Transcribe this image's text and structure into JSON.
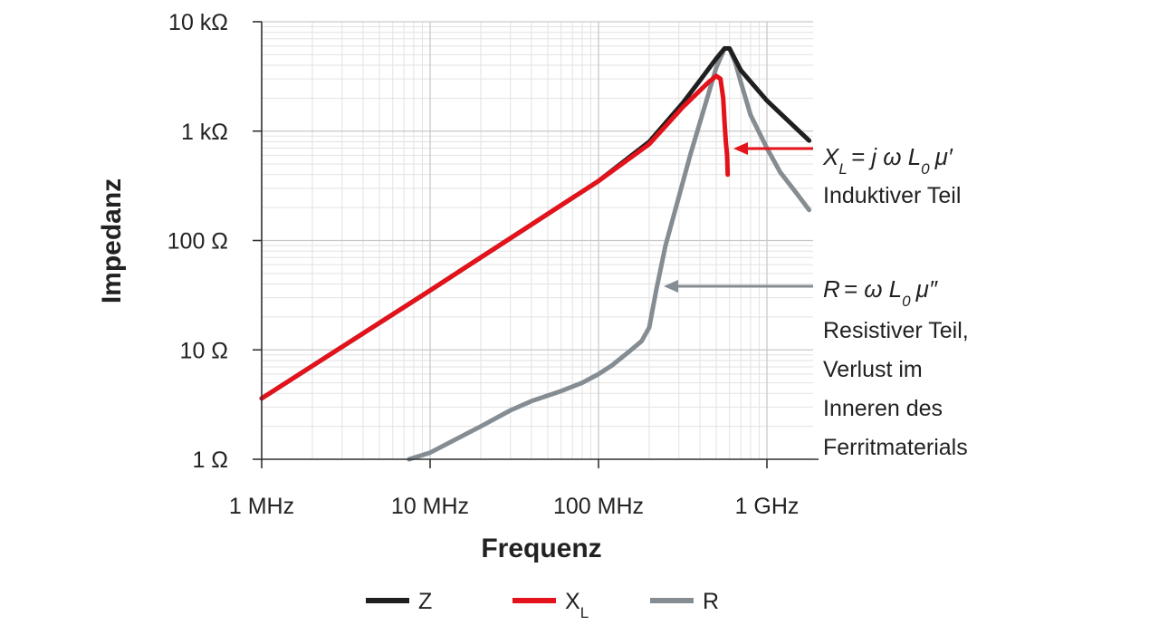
{
  "chart_data": {
    "type": "line",
    "xlabel": "Frequenz",
    "ylabel": "Impedanz",
    "x_scale": "log",
    "y_scale": "log",
    "xlim": [
      1,
      1780
    ],
    "ylim": [
      1,
      10000
    ],
    "x_unit": "MHz",
    "x_ticks": [
      {
        "value": 1,
        "label": "1 MHz"
      },
      {
        "value": 10,
        "label": "10 MHz"
      },
      {
        "value": 100,
        "label": "100 MHz"
      },
      {
        "value": 1000,
        "label": "1 GHz"
      }
    ],
    "y_ticks": [
      {
        "value": 1,
        "label": "1 Ω"
      },
      {
        "value": 10,
        "label": "10 Ω"
      },
      {
        "value": 100,
        "label": "100 Ω"
      },
      {
        "value": 1000,
        "label": "1 kΩ"
      },
      {
        "value": 10000,
        "label": "10 kΩ"
      }
    ],
    "grid": true,
    "legend_position": "bottom",
    "series": [
      {
        "name": "Z",
        "color": "#1f1f1f",
        "points": [
          [
            1,
            3.6
          ],
          [
            10,
            35
          ],
          [
            100,
            350
          ],
          [
            200,
            800
          ],
          [
            316,
            1800
          ],
          [
            400,
            2900
          ],
          [
            500,
            4600
          ],
          [
            560,
            5700
          ],
          [
            600,
            5700
          ],
          [
            700,
            3600
          ],
          [
            1000,
            1900
          ],
          [
            1500,
            1050
          ],
          [
            1780,
            820
          ]
        ]
      },
      {
        "name": "X",
        "name_subscript": "L",
        "color": "#e3121b",
        "points": [
          [
            1,
            3.6
          ],
          [
            10,
            35
          ],
          [
            100,
            350
          ],
          [
            200,
            760
          ],
          [
            316,
            1650
          ],
          [
            400,
            2350
          ],
          [
            450,
            2800
          ],
          [
            500,
            3200
          ],
          [
            530,
            3000
          ],
          [
            550,
            2000
          ],
          [
            560,
            1200
          ],
          [
            570,
            800
          ],
          [
            580,
            600
          ],
          [
            585,
            400
          ]
        ]
      },
      {
        "name": "R",
        "color": "#858d92",
        "points": [
          [
            7.5,
            1
          ],
          [
            10,
            1.15
          ],
          [
            20,
            2
          ],
          [
            30,
            2.8
          ],
          [
            40,
            3.4
          ],
          [
            60,
            4.2
          ],
          [
            80,
            5
          ],
          [
            100,
            6
          ],
          [
            120,
            7.2
          ],
          [
            150,
            9.5
          ],
          [
            180,
            12
          ],
          [
            200,
            16
          ],
          [
            220,
            35
          ],
          [
            250,
            90
          ],
          [
            300,
            250
          ],
          [
            350,
            600
          ],
          [
            400,
            1200
          ],
          [
            450,
            2200
          ],
          [
            500,
            3800
          ],
          [
            560,
            5700
          ],
          [
            600,
            5700
          ],
          [
            650,
            4200
          ],
          [
            700,
            2800
          ],
          [
            800,
            1400
          ],
          [
            1000,
            700
          ],
          [
            1200,
            420
          ],
          [
            1500,
            270
          ],
          [
            1780,
            190
          ]
        ]
      }
    ],
    "annotations": [
      {
        "target_series": "X",
        "equation": {
          "lhs": "X",
          "lhs_sub": "L",
          "rhs": "= j ω L",
          "rhs_sub": "0",
          "tail": "μ′"
        },
        "lines": [
          "Induktiver Teil"
        ],
        "arrow_to": [
          585,
          1000
        ]
      },
      {
        "target_series": "R",
        "equation": {
          "lhs": "R",
          "lhs_sub": "",
          "rhs": "= ω L",
          "rhs_sub": "0",
          "tail": "μ″"
        },
        "lines": [
          "Resistiver Teil,",
          "Verlust im",
          "Inneren des",
          "Ferritmaterials"
        ],
        "arrow_to": [
          230,
          40
        ]
      }
    ]
  }
}
